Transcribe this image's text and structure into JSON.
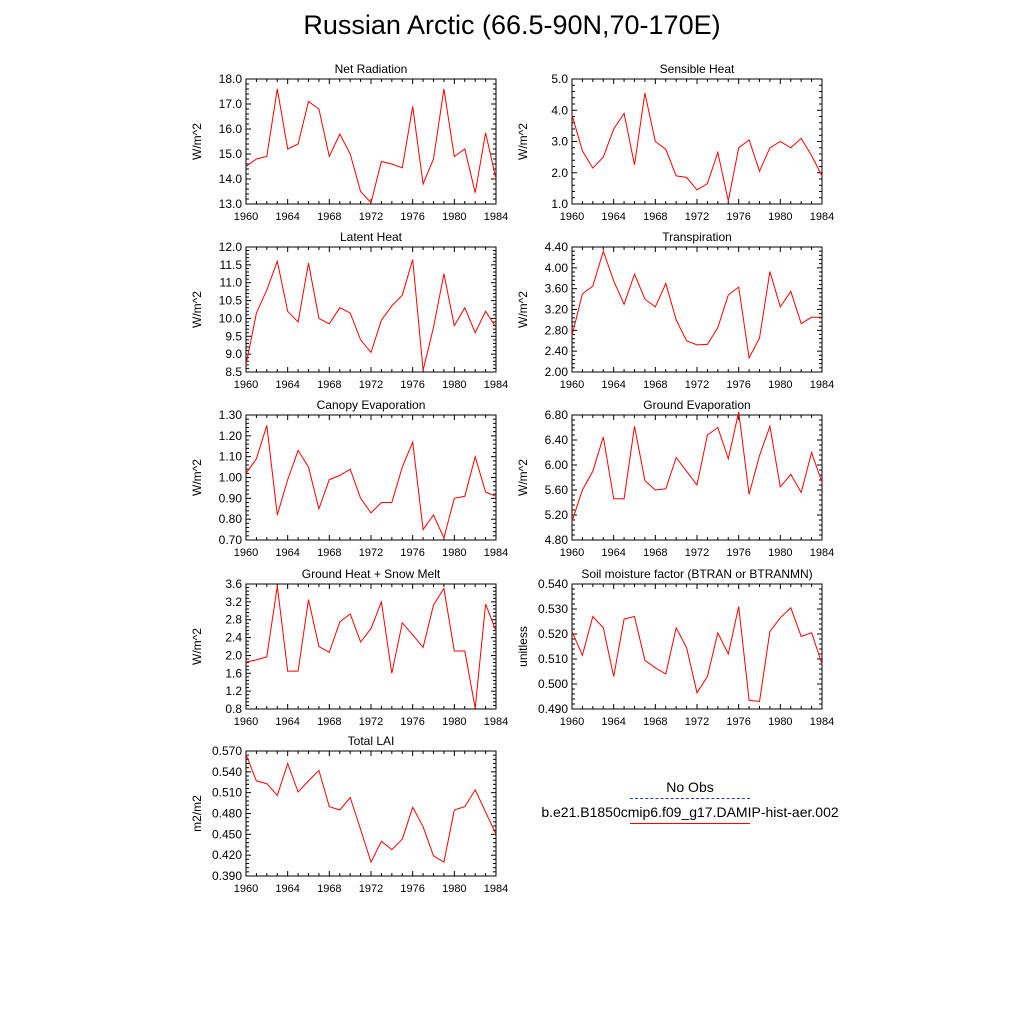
{
  "title": "Russian Arctic (66.5-90N,70-170E)",
  "colors": {
    "model": "#ff0000",
    "obs": "#1f3fbf",
    "axis": "#000000"
  },
  "legend": {
    "obs_label": "No Obs",
    "model_label": "b.e21.B1850cmip6.f09_g17.DAMIP-hist-aer.002"
  },
  "chart_data": [
    {
      "type": "line",
      "title": "Net Radiation",
      "ylabel": "W/m^2",
      "xlim": [
        1960,
        1984
      ],
      "ylim": [
        13.0,
        18.0
      ],
      "yticks": [
        "13.0",
        "14.0",
        "15.0",
        "16.0",
        "17.0",
        "18.0"
      ],
      "xticks": [
        "1960",
        "1964",
        "1968",
        "1972",
        "1976",
        "1980",
        "1984"
      ],
      "x": [
        1960,
        1961,
        1962,
        1963,
        1964,
        1965,
        1966,
        1967,
        1968,
        1969,
        1970,
        1971,
        1972,
        1973,
        1974,
        1975,
        1976,
        1977,
        1978,
        1979,
        1980,
        1981,
        1982,
        1983,
        1984
      ],
      "values": [
        14.5,
        14.8,
        14.9,
        17.6,
        15.2,
        15.4,
        17.1,
        16.8,
        14.9,
        15.8,
        15.0,
        13.5,
        13.05,
        14.7,
        14.6,
        14.45,
        16.9,
        13.8,
        14.8,
        17.6,
        14.9,
        15.2,
        13.45,
        15.85,
        14.0
      ]
    },
    {
      "type": "line",
      "title": "Sensible Heat",
      "ylabel": "W/m^2",
      "xlim": [
        1960,
        1984
      ],
      "ylim": [
        1.0,
        5.0
      ],
      "yticks": [
        "1.0",
        "2.0",
        "3.0",
        "4.0",
        "5.0"
      ],
      "xticks": [
        "1960",
        "1964",
        "1968",
        "1972",
        "1976",
        "1980",
        "1984"
      ],
      "x": [
        1960,
        1961,
        1962,
        1963,
        1964,
        1965,
        1966,
        1967,
        1968,
        1969,
        1970,
        1971,
        1972,
        1973,
        1974,
        1975,
        1976,
        1977,
        1978,
        1979,
        1980,
        1981,
        1982,
        1983,
        1984
      ],
      "values": [
        3.85,
        2.7,
        2.15,
        2.5,
        3.4,
        3.9,
        2.25,
        4.55,
        3.0,
        2.75,
        1.9,
        1.85,
        1.45,
        1.65,
        2.65,
        1.1,
        2.8,
        3.05,
        2.05,
        2.8,
        3.0,
        2.8,
        3.1,
        2.55,
        1.9
      ]
    },
    {
      "type": "line",
      "title": "Latent Heat",
      "ylabel": "W/m^2",
      "xlim": [
        1960,
        1984
      ],
      "ylim": [
        8.5,
        12.0
      ],
      "yticks": [
        "8.5",
        "9.0",
        "9.5",
        "10.0",
        "10.5",
        "11.0",
        "11.5",
        "12.0"
      ],
      "xticks": [
        "1960",
        "1964",
        "1968",
        "1972",
        "1976",
        "1980",
        "1984"
      ],
      "x": [
        1960,
        1961,
        1962,
        1963,
        1964,
        1965,
        1966,
        1967,
        1968,
        1969,
        1970,
        1971,
        1972,
        1973,
        1974,
        1975,
        1976,
        1977,
        1978,
        1979,
        1980,
        1981,
        1982,
        1983,
        1984
      ],
      "values": [
        8.7,
        10.15,
        10.8,
        11.6,
        10.2,
        9.9,
        11.55,
        10.0,
        9.85,
        10.3,
        10.15,
        9.4,
        9.05,
        9.95,
        10.35,
        10.65,
        11.65,
        8.55,
        9.75,
        11.25,
        9.8,
        10.3,
        9.6,
        10.2,
        9.75
      ]
    },
    {
      "type": "line",
      "title": "Transpiration",
      "ylabel": "W/m^2",
      "xlim": [
        1960,
        1984
      ],
      "ylim": [
        2.0,
        4.4
      ],
      "yticks": [
        "2.00",
        "2.40",
        "2.80",
        "3.20",
        "3.60",
        "4.00",
        "4.40"
      ],
      "xticks": [
        "1960",
        "1964",
        "1968",
        "1972",
        "1976",
        "1980",
        "1984"
      ],
      "x": [
        1960,
        1961,
        1962,
        1963,
        1964,
        1965,
        1966,
        1967,
        1968,
        1969,
        1970,
        1971,
        1972,
        1973,
        1974,
        1975,
        1976,
        1977,
        1978,
        1979,
        1980,
        1981,
        1982,
        1983,
        1984
      ],
      "values": [
        2.7,
        3.5,
        3.65,
        4.32,
        3.75,
        3.3,
        3.88,
        3.4,
        3.25,
        3.7,
        3.0,
        2.6,
        2.52,
        2.53,
        2.85,
        3.48,
        3.63,
        2.27,
        2.65,
        3.93,
        3.25,
        3.55,
        2.93,
        3.05,
        3.05
      ]
    },
    {
      "type": "line",
      "title": "Canopy Evaporation",
      "ylabel": "W/m^2",
      "xlim": [
        1960,
        1984
      ],
      "ylim": [
        0.7,
        1.3
      ],
      "yticks": [
        "0.70",
        "0.80",
        "0.90",
        "1.00",
        "1.10",
        "1.20",
        "1.30"
      ],
      "xticks": [
        "1960",
        "1964",
        "1968",
        "1972",
        "1976",
        "1980",
        "1984"
      ],
      "x": [
        1960,
        1961,
        1962,
        1963,
        1964,
        1965,
        1966,
        1967,
        1968,
        1969,
        1970,
        1971,
        1972,
        1973,
        1974,
        1975,
        1976,
        1977,
        1978,
        1979,
        1980,
        1981,
        1982,
        1983,
        1984
      ],
      "values": [
        1.02,
        1.09,
        1.25,
        0.82,
        0.99,
        1.13,
        1.05,
        0.85,
        0.99,
        1.01,
        1.04,
        0.9,
        0.83,
        0.88,
        0.88,
        1.05,
        1.17,
        0.75,
        0.82,
        0.71,
        0.9,
        0.91,
        1.1,
        0.93,
        0.91
      ]
    },
    {
      "type": "line",
      "title": "Ground Evaporation",
      "ylabel": "W/m^2",
      "xlim": [
        1960,
        1984
      ],
      "ylim": [
        4.8,
        6.8
      ],
      "yticks": [
        "4.80",
        "5.20",
        "5.60",
        "6.00",
        "6.40",
        "6.80"
      ],
      "xticks": [
        "1960",
        "1964",
        "1968",
        "1972",
        "1976",
        "1980",
        "1984"
      ],
      "x": [
        1960,
        1961,
        1962,
        1963,
        1964,
        1965,
        1966,
        1967,
        1968,
        1969,
        1970,
        1971,
        1972,
        1973,
        1974,
        1975,
        1976,
        1977,
        1978,
        1979,
        1980,
        1981,
        1982,
        1983,
        1984
      ],
      "values": [
        5.1,
        5.6,
        5.9,
        6.45,
        5.46,
        5.46,
        6.62,
        5.75,
        5.6,
        5.62,
        6.12,
        5.9,
        5.68,
        6.48,
        6.6,
        6.1,
        6.85,
        5.53,
        6.15,
        6.62,
        5.65,
        5.85,
        5.56,
        6.2,
        5.72
      ]
    },
    {
      "type": "line",
      "title": "Ground Heat + Snow Melt",
      "ylabel": "W/m^2",
      "xlim": [
        1960,
        1984
      ],
      "ylim": [
        0.8,
        3.6
      ],
      "yticks": [
        "0.8",
        "1.2",
        "1.6",
        "2.0",
        "2.4",
        "2.8",
        "3.2",
        "3.6"
      ],
      "xticks": [
        "1960",
        "1964",
        "1968",
        "1972",
        "1976",
        "1980",
        "1984"
      ],
      "x": [
        1960,
        1961,
        1962,
        1963,
        1964,
        1965,
        1966,
        1967,
        1968,
        1969,
        1970,
        1971,
        1972,
        1973,
        1974,
        1975,
        1976,
        1977,
        1978,
        1979,
        1980,
        1981,
        1982,
        1983,
        1984
      ],
      "values": [
        1.85,
        1.9,
        1.97,
        3.55,
        1.65,
        1.65,
        3.25,
        2.2,
        2.07,
        2.75,
        2.93,
        2.3,
        2.6,
        3.2,
        1.6,
        2.73,
        2.46,
        2.18,
        3.13,
        3.5,
        2.1,
        2.1,
        0.82,
        3.15,
        2.55
      ]
    },
    {
      "type": "line",
      "title": "Soil moisture factor (BTRAN or BTRANMN)",
      "ylabel": "unitless",
      "xlim": [
        1960,
        1984
      ],
      "ylim": [
        0.49,
        0.54
      ],
      "yticks": [
        "0.490",
        "0.500",
        "0.510",
        "0.520",
        "0.530",
        "0.540"
      ],
      "xticks": [
        "1960",
        "1964",
        "1968",
        "1972",
        "1976",
        "1980",
        "1984"
      ],
      "x": [
        1960,
        1961,
        1962,
        1963,
        1964,
        1965,
        1966,
        1967,
        1968,
        1969,
        1970,
        1971,
        1972,
        1973,
        1974,
        1975,
        1976,
        1977,
        1978,
        1979,
        1980,
        1981,
        1982,
        1983,
        1984
      ],
      "values": [
        0.521,
        0.5115,
        0.527,
        0.5225,
        0.503,
        0.526,
        0.527,
        0.5095,
        0.5065,
        0.504,
        0.5225,
        0.5145,
        0.4965,
        0.503,
        0.5205,
        0.512,
        0.531,
        0.4935,
        0.493,
        0.521,
        0.5265,
        0.5305,
        0.519,
        0.5205,
        0.508
      ]
    },
    {
      "type": "line",
      "title": "Total LAI",
      "ylabel": "m2/m2",
      "xlim": [
        1960,
        1984
      ],
      "ylim": [
        0.39,
        0.57
      ],
      "yticks": [
        "0.390",
        "0.420",
        "0.450",
        "0.480",
        "0.510",
        "0.540",
        "0.570"
      ],
      "xticks": [
        "1960",
        "1964",
        "1968",
        "1972",
        "1976",
        "1980",
        "1984"
      ],
      "x": [
        1960,
        1961,
        1962,
        1963,
        1964,
        1965,
        1966,
        1967,
        1968,
        1969,
        1970,
        1971,
        1972,
        1973,
        1974,
        1975,
        1976,
        1977,
        1978,
        1979,
        1980,
        1981,
        1982,
        1983,
        1984
      ],
      "values": [
        0.565,
        0.527,
        0.523,
        0.506,
        0.552,
        0.511,
        0.527,
        0.542,
        0.49,
        0.485,
        0.503,
        0.457,
        0.41,
        0.44,
        0.428,
        0.443,
        0.489,
        0.461,
        0.419,
        0.41,
        0.485,
        0.49,
        0.514,
        0.482,
        0.45
      ]
    }
  ]
}
